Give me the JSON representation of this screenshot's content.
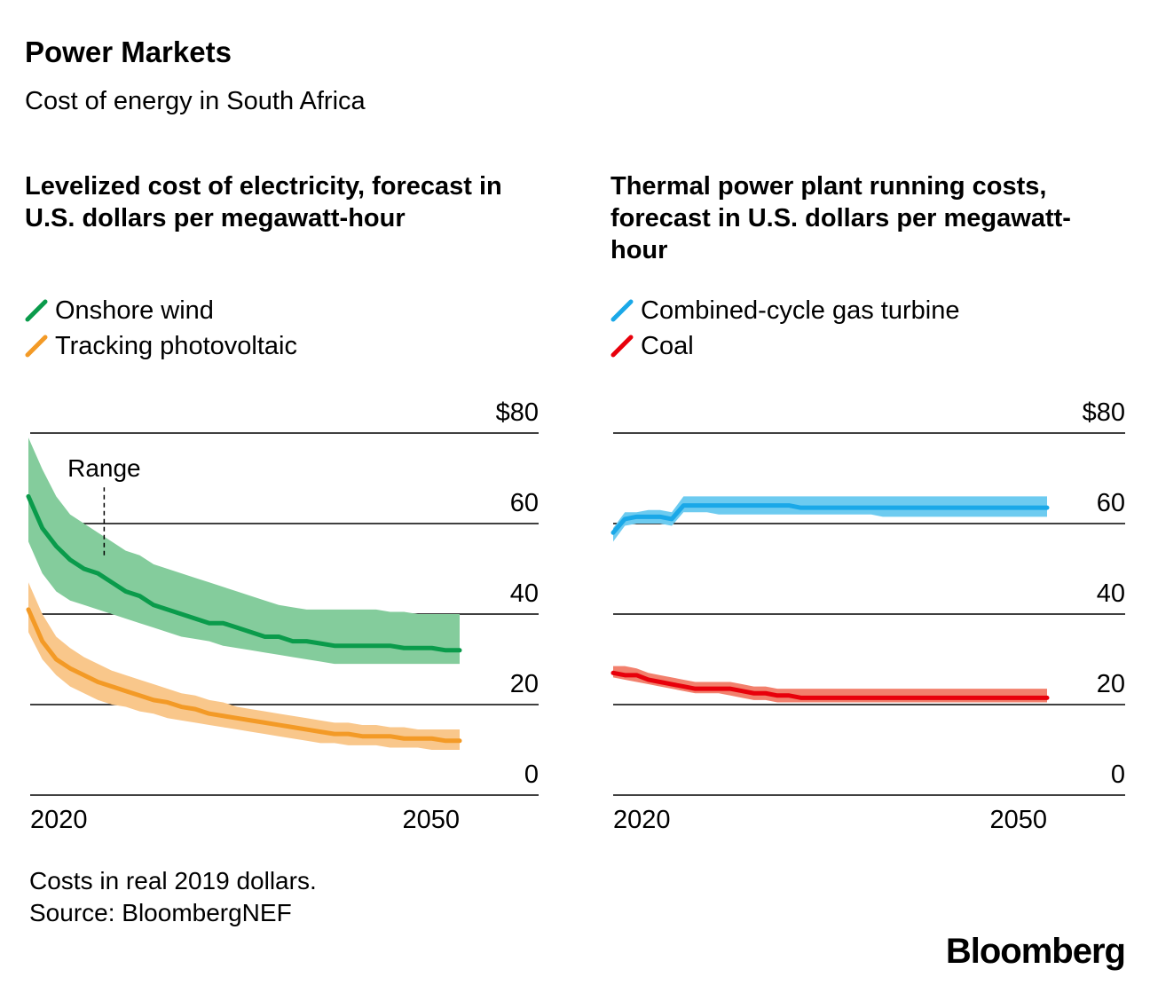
{
  "header": {
    "title": "Power Markets",
    "subtitle": "Cost of energy in South Africa"
  },
  "panels": {
    "left": {
      "title": "Levelized cost of electricity, forecast in U.S. dollars per megawatt-hour",
      "legend": [
        "Onshore wind",
        "Tracking photovoltaic"
      ],
      "annotation": "Range"
    },
    "right": {
      "title": "Thermal power plant running costs, forecast in U.S. dollars per megawatt-hour",
      "legend": [
        "Combined-cycle gas turbine",
        "Coal"
      ]
    }
  },
  "colors": {
    "wind_line": "#0a9b4b",
    "wind_band": "#84cc9c",
    "pv_line": "#f39a26",
    "pv_band": "#f9c78b",
    "gas_line": "#1aa8e8",
    "gas_band": "#6dcbf0",
    "coal_line": "#e8000b",
    "coal_band": "#f2806d",
    "grid": "#000000"
  },
  "chart_data": [
    {
      "type": "area",
      "title": "Levelized cost of electricity, forecast in U.S. dollars per megawatt-hour",
      "x_start": 2018,
      "x_end": 2055,
      "xticks": [
        "2020",
        "2050"
      ],
      "yticks": [
        "0",
        "20",
        "40",
        "60",
        "$80"
      ],
      "ylim": [
        0,
        80
      ],
      "series": [
        {
          "name": "Onshore wind",
          "color_key": "wind",
          "mid": [
            66,
            59,
            55,
            52,
            50,
            49,
            47,
            45,
            44,
            42,
            41,
            40,
            39,
            38,
            38,
            37,
            36,
            35,
            35,
            34,
            34,
            33.5,
            33,
            33,
            33,
            33,
            33,
            32.5,
            32.5,
            32.5,
            32,
            32
          ],
          "high": [
            79,
            72,
            66,
            62,
            60,
            58,
            56,
            54,
            53,
            51,
            50,
            49,
            48,
            47,
            46,
            45,
            44,
            43,
            42,
            41.5,
            41,
            41,
            41,
            41,
            41,
            41,
            40.5,
            40.5,
            40,
            40,
            40,
            40
          ],
          "low": [
            56,
            49,
            45,
            43,
            42,
            41,
            40,
            39,
            38,
            37,
            36,
            35,
            34.5,
            34,
            33,
            32.5,
            32,
            31.5,
            31,
            30.5,
            30,
            29.5,
            29,
            29,
            29,
            29,
            29,
            29,
            29,
            29,
            29,
            29
          ]
        },
        {
          "name": "Tracking photovoltaic",
          "color_key": "pv",
          "mid": [
            41,
            34,
            30,
            28,
            26.5,
            25,
            24,
            23,
            22,
            21,
            20.5,
            19.5,
            19,
            18,
            17.5,
            17,
            16.5,
            16,
            15.5,
            15,
            14.5,
            14,
            13.5,
            13.5,
            13,
            13,
            13,
            12.5,
            12.5,
            12.5,
            12,
            12
          ],
          "high": [
            47,
            40,
            35,
            32.5,
            30.5,
            29,
            27.5,
            26.5,
            25.5,
            24.5,
            23.5,
            22.5,
            22,
            21,
            20.5,
            19.5,
            19,
            18.5,
            18,
            17.5,
            17,
            16.5,
            16,
            16,
            15.5,
            15.5,
            15,
            15,
            14.5,
            14.5,
            14.5,
            14.5
          ],
          "low": [
            36,
            30,
            26.5,
            24,
            22.5,
            21,
            20,
            19.5,
            18.5,
            18,
            17,
            16.5,
            16,
            15.5,
            15,
            14.5,
            14,
            13.5,
            13,
            12.5,
            12,
            11.5,
            11.5,
            11,
            11,
            11,
            10.5,
            10.5,
            10.5,
            10,
            10,
            10
          ]
        }
      ],
      "annotation": {
        "text": "Range",
        "x": 2024.5,
        "y_from": 53,
        "y_to": 68
      }
    },
    {
      "type": "area",
      "title": "Thermal power plant running costs, forecast in U.S. dollars per megawatt-hour",
      "x_start": 2018,
      "x_end": 2055,
      "xticks": [
        "2020",
        "2050"
      ],
      "yticks": [
        "0",
        "20",
        "40",
        "60",
        "$80"
      ],
      "ylim": [
        0,
        80
      ],
      "series": [
        {
          "name": "Combined-cycle gas turbine",
          "color_key": "gas",
          "mid": [
            58,
            61,
            61.5,
            61.5,
            61.5,
            61,
            64,
            64,
            64,
            64,
            64,
            64,
            64,
            64,
            64,
            64,
            63.5,
            63.5,
            63.5,
            63.5,
            63.5,
            63.5,
            63.5,
            63.5,
            63.5,
            63.5,
            63.5,
            63.5,
            63.5,
            63.5,
            63.5,
            63.5,
            63.5,
            63.5,
            63.5,
            63.5,
            63.5,
            63.5
          ],
          "high": [
            59,
            62.5,
            62.5,
            63,
            63,
            62.5,
            66,
            66,
            66,
            66,
            66,
            66,
            66,
            66,
            66,
            66,
            66,
            66,
            66,
            66,
            66,
            66,
            66,
            66,
            66,
            66,
            66,
            66,
            66,
            66,
            66,
            66,
            66,
            66,
            66,
            66,
            66,
            66
          ],
          "low": [
            56,
            59.5,
            60,
            60,
            60,
            59.5,
            62.5,
            62.5,
            62.5,
            62,
            62,
            62,
            62,
            62,
            62,
            62,
            62,
            62,
            62,
            62,
            62,
            62,
            62,
            61.5,
            61.5,
            61.5,
            61.5,
            61.5,
            61.5,
            61.5,
            61.5,
            61.5,
            61.5,
            61.5,
            61.5,
            61.5,
            61.5,
            61.5
          ]
        },
        {
          "name": "Coal",
          "color_key": "coal",
          "mid": [
            27,
            26.5,
            26.5,
            25.5,
            25,
            24.5,
            24,
            23.5,
            23.5,
            23.5,
            23.5,
            23,
            22.5,
            22.5,
            22,
            22,
            21.5,
            21.5,
            21.5,
            21.5,
            21.5,
            21.5,
            21.5,
            21.5,
            21.5,
            21.5,
            21.5,
            21.5,
            21.5,
            21.5,
            21.5,
            21.5,
            21.5,
            21.5,
            21.5,
            21.5,
            21.5,
            21.5
          ],
          "high": [
            28.5,
            28.5,
            28,
            27,
            26.5,
            26,
            25.5,
            25,
            25,
            25,
            25,
            24.5,
            24,
            24,
            23.5,
            23.5,
            23.5,
            23.5,
            23.5,
            23.5,
            23.5,
            23.5,
            23.5,
            23.5,
            23.5,
            23.5,
            23.5,
            23.5,
            23.5,
            23.5,
            23.5,
            23.5,
            23.5,
            23.5,
            23.5,
            23.5,
            23.5,
            23.5
          ],
          "low": [
            26,
            25.5,
            25,
            24.5,
            24,
            23.5,
            23,
            22.5,
            22.5,
            22.5,
            22,
            21.5,
            21,
            21,
            20.5,
            20.5,
            20.5,
            20.5,
            20.5,
            20.5,
            20.5,
            20.5,
            20.5,
            20.5,
            20.5,
            20.5,
            20.5,
            20.5,
            20.5,
            20.5,
            20.5,
            20.5,
            20.5,
            20.5,
            20.5,
            20.5,
            20.5,
            20.5
          ]
        }
      ]
    }
  ],
  "footer": {
    "note": "Costs in real 2019 dollars.",
    "source": "Source: BloombergNEF",
    "logo": "Bloomberg"
  }
}
